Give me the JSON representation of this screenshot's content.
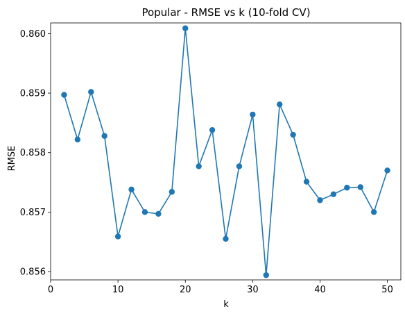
{
  "chart_data": {
    "type": "line",
    "title": "Popular - RMSE vs k (10-fold CV)",
    "xlabel": "k",
    "ylabel": "RMSE",
    "xlim": [
      0,
      52
    ],
    "ylim": [
      0.85586,
      0.86018
    ],
    "grid": false,
    "legend": "none",
    "x_ticks": [
      0,
      10,
      20,
      30,
      40,
      50
    ],
    "x_tick_labels": [
      "0",
      "10",
      "20",
      "30",
      "40",
      "50"
    ],
    "y_ticks": [
      0.856,
      0.857,
      0.858,
      0.859,
      0.86
    ],
    "y_tick_labels": [
      "0.856",
      "0.857",
      "0.858",
      "0.859",
      "0.860"
    ],
    "series": [
      {
        "color": "#1f77b4",
        "marker": "circle",
        "x": [
          2,
          4,
          6,
          8,
          10,
          12,
          14,
          16,
          18,
          20,
          22,
          24,
          26,
          28,
          30,
          32,
          34,
          36,
          38,
          40,
          42,
          44,
          46,
          48,
          50
        ],
        "y": [
          0.85897,
          0.85822,
          0.85902,
          0.85828,
          0.85659,
          0.85738,
          0.857,
          0.85697,
          0.85734,
          0.86009,
          0.85777,
          0.85838,
          0.85655,
          0.85777,
          0.85864,
          0.85594,
          0.85881,
          0.8583,
          0.85751,
          0.8572,
          0.8573,
          0.85741,
          0.85742,
          0.857,
          0.8577
        ]
      }
    ]
  }
}
